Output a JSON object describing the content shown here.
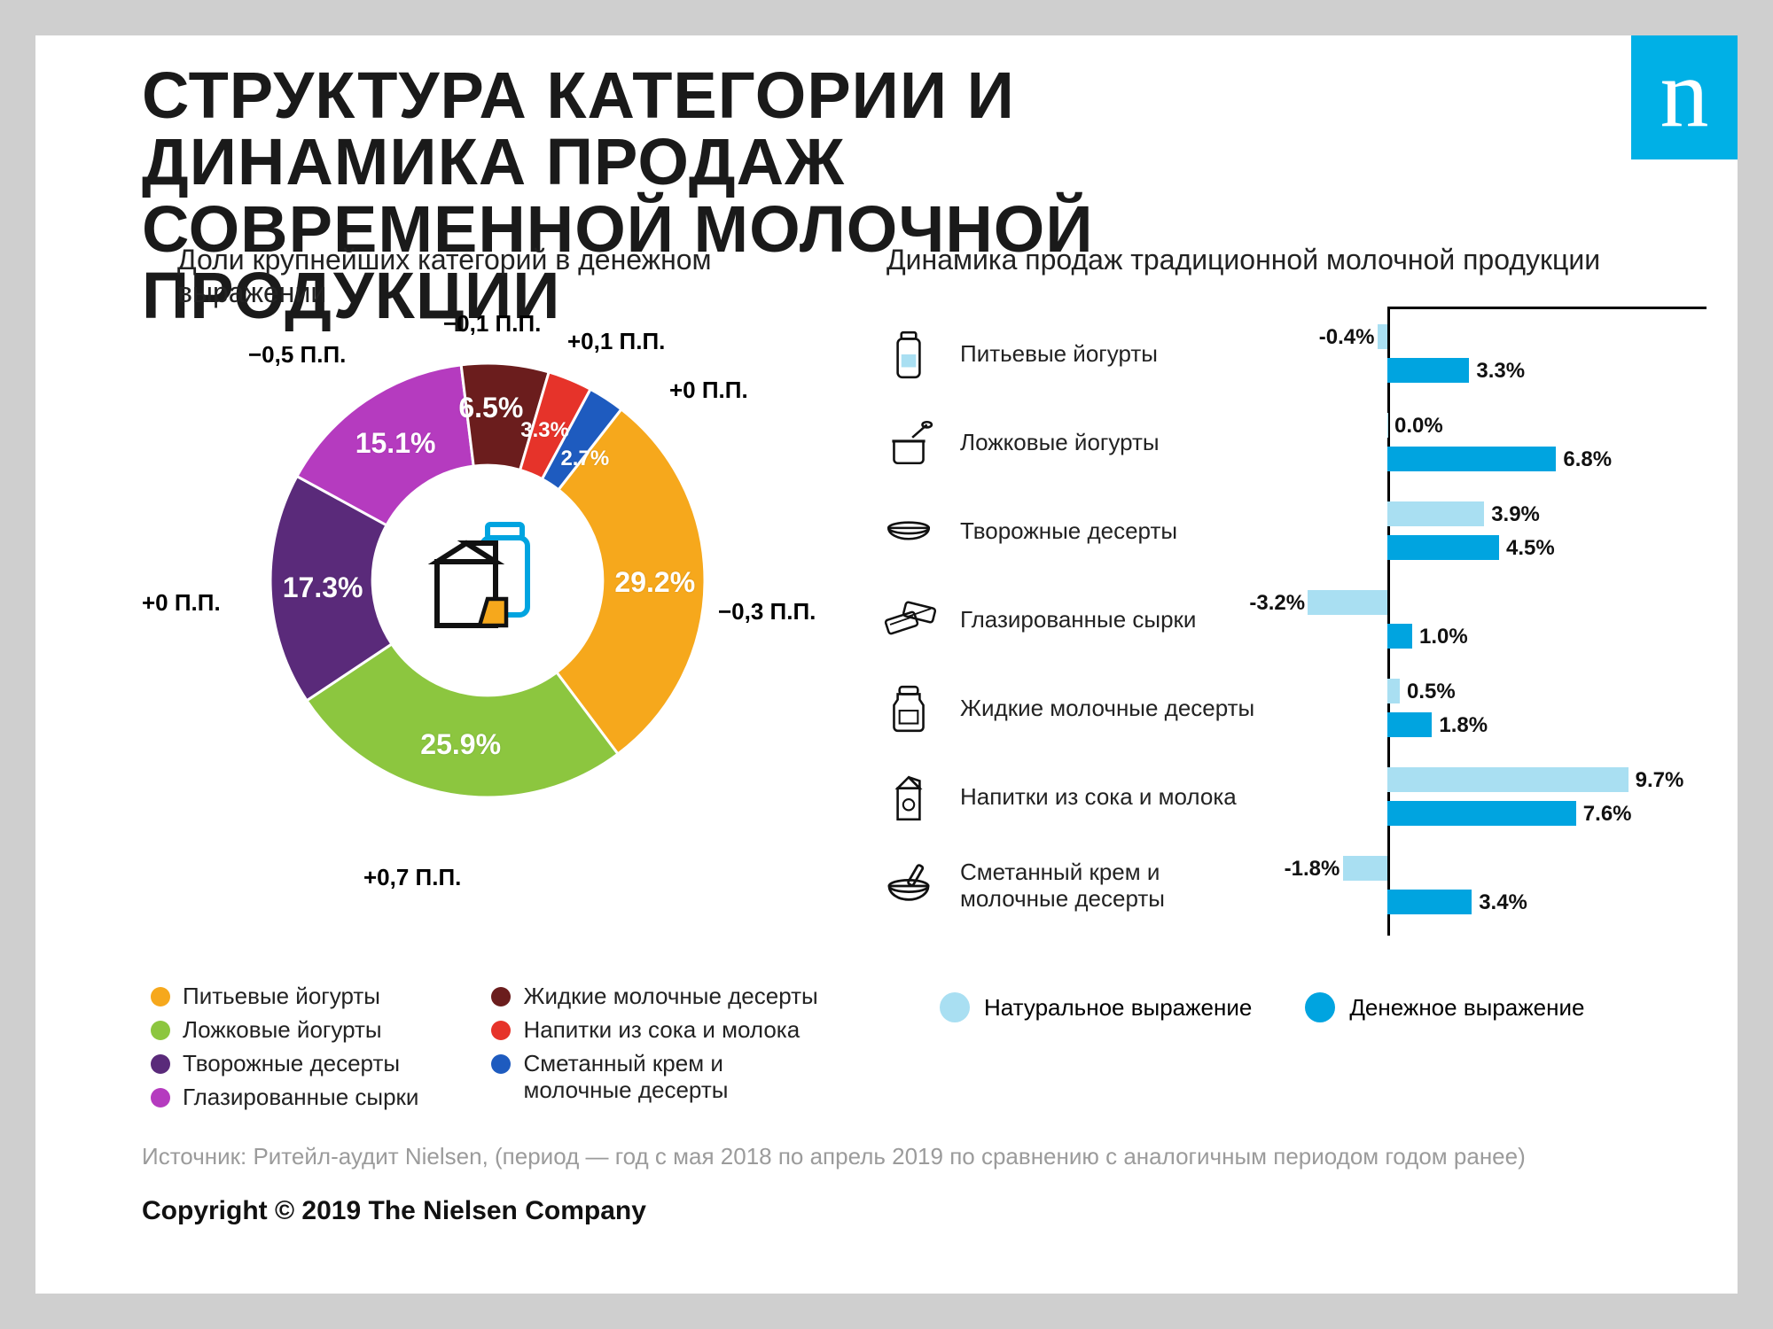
{
  "title": "СТРУКТУРА КАТЕГОРИИ И ДИНАМИКА ПРОДАЖ СОВРЕМЕННОЙ МОЛОЧНОЙ ПРОДУКЦИИ",
  "logo_letter": "n",
  "background_color": "#ffffff",
  "page_bg": "#cfcfcf",
  "subtitle_left": "Доли крупнейших категорий в денежном выражении",
  "subtitle_right": "Динамика продаж традиционной молочной продукции",
  "donut": {
    "type": "donut",
    "inner_ratio": 0.53,
    "stroke": "#ffffff",
    "stroke_width": 3,
    "slices": [
      {
        "key": "drinking_yogurt",
        "label": "Питьевые йогурты",
        "value": 29.2,
        "pp": "−0,3 П.П.",
        "color": "#f6a81c",
        "value_text": "29.2%"
      },
      {
        "key": "spoon_yogurt",
        "label": "Ложковые йогурты",
        "value": 25.9,
        "pp": "+0,7 П.П.",
        "color": "#8cc63f",
        "value_text": "25.9%"
      },
      {
        "key": "curd_desserts",
        "label": "Творожные десерты",
        "value": 17.3,
        "pp": "+0 П.П.",
        "color": "#5a2a7a",
        "value_text": "17.3%"
      },
      {
        "key": "glazed_curd",
        "label": "Глазированные сырки",
        "value": 15.1,
        "pp": "−0,5 П.П.",
        "color": "#b53bbf",
        "value_text": "15.1%"
      },
      {
        "key": "liquid_desserts",
        "label": "Жидкие молочные десерты",
        "value": 6.5,
        "pp": "−0,1 П.П.",
        "color": "#6b1d1d",
        "value_text": "6.5%"
      },
      {
        "key": "juice_milk",
        "label": "Напитки из сока и молока",
        "value": 3.3,
        "pp": "+0,1 П.П.",
        "color": "#e6332a",
        "value_text": "3.3%"
      },
      {
        "key": "sour_cream_dess",
        "label": "Сметанный крем и молочные десерты",
        "value": 2.7,
        "pp": "+0 П.П.",
        "color": "#1e5bbf",
        "value_text": "2.7%"
      }
    ]
  },
  "bar_chart": {
    "type": "grouped-bar-horizontal",
    "zero_axis_color": "#000000",
    "series": [
      {
        "key": "natural",
        "label": "Натуральное выражение",
        "color": "#a9dff2"
      },
      {
        "key": "money",
        "label": "Денежное выражение",
        "color": "#00a4e0"
      }
    ],
    "x_domain": [
      -4,
      10
    ],
    "categories": [
      {
        "key": "drinking_yogurt",
        "label": "Питьевые йогурты",
        "natural": -0.4,
        "money": 3.3,
        "natural_text": "-0.4%",
        "money_text": "3.3%"
      },
      {
        "key": "spoon_yogurt",
        "label": "Ложковые йогурты",
        "natural": 0.0,
        "money": 6.8,
        "natural_text": "0.0%",
        "money_text": "6.8%"
      },
      {
        "key": "curd_desserts",
        "label": "Творожные десерты",
        "natural": 3.9,
        "money": 4.5,
        "natural_text": "3.9%",
        "money_text": "4.5%"
      },
      {
        "key": "glazed_curd",
        "label": "Глазированные сырки",
        "natural": -3.2,
        "money": 1.0,
        "natural_text": "-3.2%",
        "money_text": "1.0%"
      },
      {
        "key": "liquid_desserts",
        "label": "Жидкие молочные десерты",
        "natural": 0.5,
        "money": 1.8,
        "natural_text": "0.5%",
        "money_text": "1.8%"
      },
      {
        "key": "juice_milk",
        "label": "Напитки из сока и молока",
        "natural": 9.7,
        "money": 7.6,
        "natural_text": "9.7%",
        "money_text": "7.6%"
      },
      {
        "key": "sour_cream_dess",
        "label": "Сметанный крем и молочные десерты",
        "natural": -1.8,
        "money": 3.4,
        "natural_text": "-1.8%",
        "money_text": "3.4%"
      }
    ]
  },
  "source": "Источник: Ритейл-аудит Nielsen, (период — год с мая 2018 по апрель 2019 по сравнению с аналогичным периодом годом ранее)",
  "copyright": "Copyright © 2019 The Nielsen Company"
}
